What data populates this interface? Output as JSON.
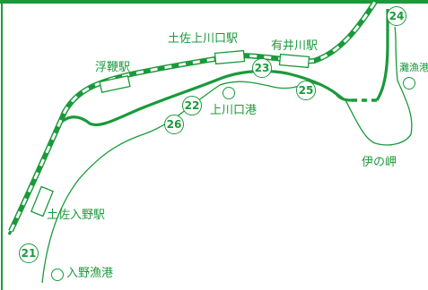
{
  "colors": {
    "route": "#1a9a3a",
    "rail": "#1a9a3a",
    "coast": "#1a9a3a",
    "background": "#ffffff"
  },
  "stations": {
    "tosa_irino": "土佐入野駅",
    "ukibuchi": "浮鞭駅",
    "tosa_kamikawaguchi": "土佐上川口駅",
    "arii_gawa": "有井川駅"
  },
  "ports": {
    "irino": "入野漁港",
    "kamikawaguchi": "上川口港",
    "nada": "灘漁港"
  },
  "capes": {
    "ino_misaki": "伊の岬"
  },
  "route_markers": [
    "21",
    "22",
    "23",
    "24",
    "25",
    "26"
  ]
}
